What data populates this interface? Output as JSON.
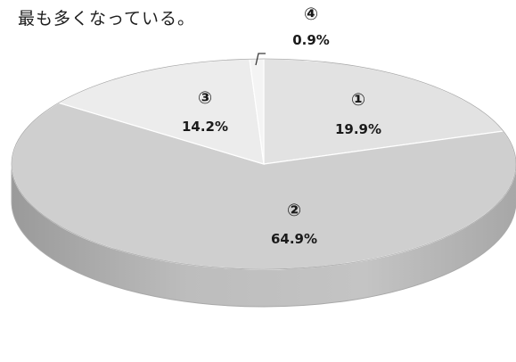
{
  "caption": "最も多くなっている。",
  "chart_data": {
    "type": "pie",
    "style": "3d",
    "categories": [
      "①",
      "②",
      "③",
      "④"
    ],
    "values": [
      19.9,
      64.9,
      14.2,
      0.9
    ],
    "value_labels": [
      "19.9%",
      "64.9%",
      "14.2%",
      "0.9%"
    ],
    "title": "",
    "legend": "none",
    "colors": {
      "slice_1": "#e2e2e2",
      "slice_2": "#cfcfcf",
      "slice_3": "#ececec",
      "slice_4": "#f4f4f4",
      "side": "#b4b4b4",
      "edge": "#a9a9a9"
    }
  }
}
